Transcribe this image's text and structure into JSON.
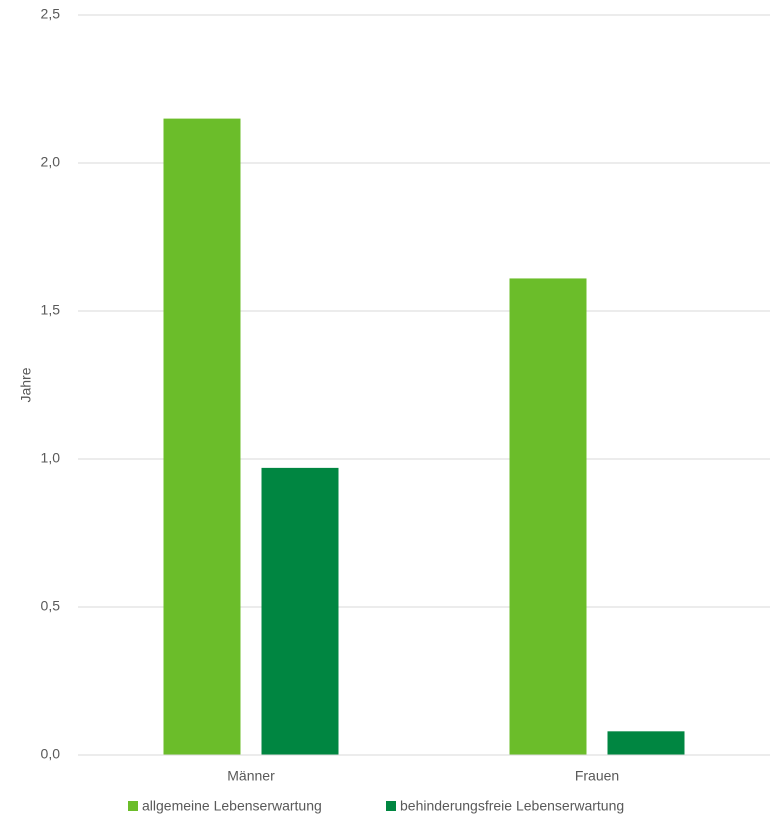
{
  "chart_data": {
    "type": "bar",
    "y_label": "Jahre",
    "categories": [
      "Männer",
      "Frauen"
    ],
    "series": [
      {
        "name": "allgemeine Lebenserwartung",
        "color": "#6bbd2a",
        "values": [
          2.15,
          1.61
        ]
      },
      {
        "name": "behinderungsfreie Lebenserwartung",
        "color": "#008641",
        "values": [
          0.97,
          0.08
        ]
      }
    ],
    "ylim": [
      0,
      2.5
    ],
    "yticks": [
      {
        "value": 0,
        "label": "0,0"
      },
      {
        "value": 0.5,
        "label": "0,5"
      },
      {
        "value": 1,
        "label": "1,0"
      },
      {
        "value": 1.5,
        "label": "1,5"
      },
      {
        "value": 2,
        "label": "2,0"
      },
      {
        "value": 2.5,
        "label": "2,5"
      }
    ],
    "grid": true
  }
}
